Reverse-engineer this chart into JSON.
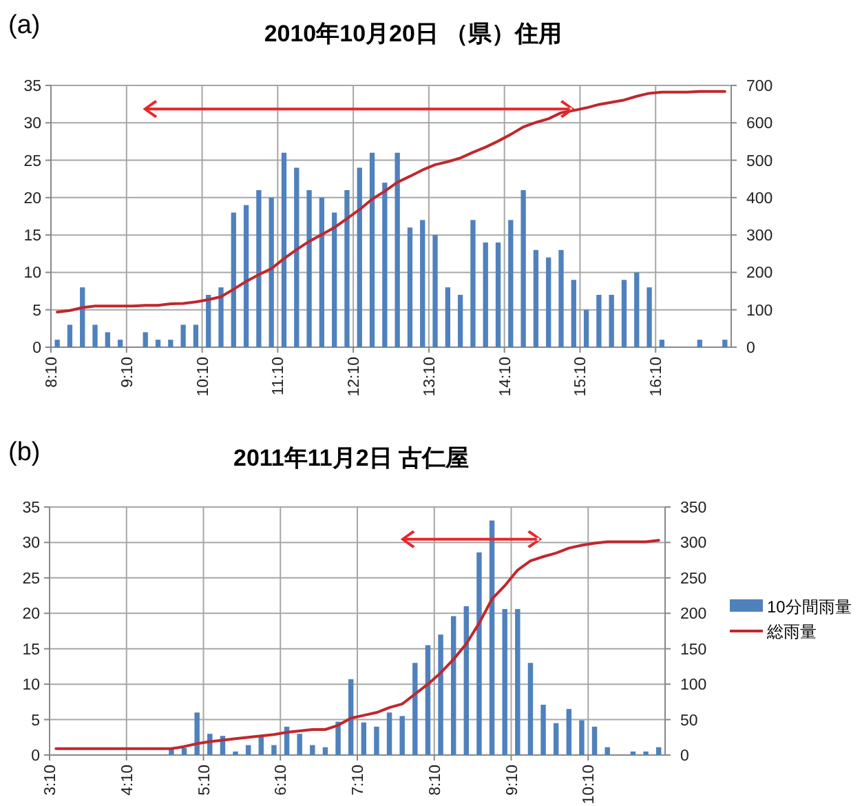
{
  "chart_data": [
    {
      "type": "bar",
      "title": "2010年10月20日 （県）住用",
      "annotations": [
        "(a)"
      ],
      "xlim": [
        8.1667,
        17.1667
      ],
      "xticks": [
        {
          "value": 8.1667,
          "label": "8:10"
        },
        {
          "value": 9.1667,
          "label": "9:10"
        },
        {
          "value": 10.1667,
          "label": "10:10"
        },
        {
          "value": 11.1667,
          "label": "11:10"
        },
        {
          "value": 12.1667,
          "label": "12:10"
        },
        {
          "value": 13.1667,
          "label": "13:10"
        },
        {
          "value": 14.1667,
          "label": "14:10"
        },
        {
          "value": 15.1667,
          "label": "15:10"
        },
        {
          "value": 16.1667,
          "label": "16:10"
        }
      ],
      "ylim": [
        0,
        35
      ],
      "yticks": [
        0,
        5,
        10,
        15,
        20,
        25,
        30,
        35
      ],
      "y2lim": [
        0,
        700
      ],
      "y2ticks": [
        0,
        100,
        200,
        300,
        400,
        500,
        600,
        700
      ],
      "grid": true,
      "x": [
        8.25,
        8.4167,
        8.5833,
        8.75,
        8.9167,
        9.0833,
        9.25,
        9.4167,
        9.5833,
        9.75,
        9.9167,
        10.0833,
        10.25,
        10.4167,
        10.5833,
        10.75,
        10.9167,
        11.0833,
        11.25,
        11.4167,
        11.5833,
        11.75,
        11.9167,
        12.0833,
        12.25,
        12.4167,
        12.5833,
        12.75,
        12.9167,
        13.0833,
        13.25,
        13.4167,
        13.5833,
        13.75,
        13.9167,
        14.0833,
        14.25,
        14.4167,
        14.5833,
        14.75,
        14.9167,
        15.0833,
        15.25,
        15.4167,
        15.5833,
        15.75,
        15.9167,
        16.0833,
        16.25,
        16.4167,
        16.5833,
        16.75,
        16.9167,
        17.0833
      ],
      "series": [
        {
          "color": "#4f81bd",
          "values": [
            1,
            3,
            8,
            3,
            2,
            1,
            0,
            2,
            1,
            1,
            3,
            3,
            7,
            8,
            18,
            19,
            21,
            20,
            26,
            24,
            21,
            20,
            18,
            21,
            24,
            26,
            22,
            26,
            16,
            17,
            15,
            8,
            7,
            17,
            14,
            14,
            17,
            21,
            13,
            12,
            13,
            9,
            5,
            7,
            7,
            9,
            10,
            8,
            1,
            0,
            0,
            1,
            0,
            1
          ]
        },
        {
          "type": "line",
          "axis": "y2",
          "color": "#c0272d",
          "values": [
            94,
            98,
            106,
            110,
            110,
            110,
            110,
            112,
            112,
            116,
            117,
            121,
            127,
            135,
            155,
            176,
            194,
            210,
            237,
            261,
            283,
            301,
            320,
            344,
            368,
            396,
            417,
            441,
            457,
            474,
            488,
            496,
            506,
            521,
            535,
            551,
            569,
            589,
            601,
            611,
            627,
            633,
            640,
            649,
            655,
            661,
            671,
            679,
            682,
            682,
            682,
            684,
            684,
            684
          ]
        }
      ]
    },
    {
      "type": "bar",
      "title": "2011年11月2日  古仁屋",
      "annotations": [
        "(b)"
      ],
      "xlim": [
        3.1667,
        11.1667
      ],
      "xticks": [
        {
          "value": 3.1667,
          "label": "3:10"
        },
        {
          "value": 4.1667,
          "label": "4:10"
        },
        {
          "value": 5.1667,
          "label": "5:10"
        },
        {
          "value": 6.1667,
          "label": "6:10"
        },
        {
          "value": 7.1667,
          "label": "7:10"
        },
        {
          "value": 8.1667,
          "label": "8:10"
        },
        {
          "value": 9.1667,
          "label": "9:10"
        },
        {
          "value": 10.1667,
          "label": "10:10"
        }
      ],
      "ylim": [
        0,
        35
      ],
      "yticks": [
        0,
        5,
        10,
        15,
        20,
        25,
        30,
        35
      ],
      "y2lim": [
        0,
        350
      ],
      "y2ticks": [
        0,
        50,
        100,
        150,
        200,
        250,
        300,
        350
      ],
      "grid": true,
      "legend": "right",
      "x": [
        3.25,
        3.4167,
        3.5833,
        3.75,
        3.9167,
        4.0833,
        4.25,
        4.4167,
        4.5833,
        4.75,
        4.9167,
        5.0833,
        5.25,
        5.4167,
        5.5833,
        5.75,
        5.9167,
        6.0833,
        6.25,
        6.4167,
        6.5833,
        6.75,
        6.9167,
        7.0833,
        7.25,
        7.4167,
        7.5833,
        7.75,
        7.9167,
        8.0833,
        8.25,
        8.4167,
        8.5833,
        8.75,
        8.9167,
        9.0833,
        9.25,
        9.4167,
        9.5833,
        9.75,
        9.9167,
        10.0833,
        10.25,
        10.4167,
        10.5833,
        10.75,
        10.9167,
        11.0833
      ],
      "series": [
        {
          "name": "10分間雨量",
          "color": "#4f81bd",
          "values": [
            0,
            0,
            0,
            0,
            0,
            0,
            0,
            0,
            0,
            1,
            1,
            6,
            3,
            2.7,
            0.5,
            1.4,
            2.7,
            1.4,
            4,
            3,
            1.4,
            1.1,
            4.7,
            10.7,
            4.6,
            4,
            6,
            5.5,
            13,
            15.5,
            17,
            19.6,
            21,
            28.6,
            33.1,
            20.6,
            20.6,
            13,
            7.1,
            4.5,
            6.5,
            4.9,
            4,
            1.1,
            0,
            0.5,
            0.5,
            1.1
          ]
        },
        {
          "type": "line",
          "name": "総雨量",
          "axis": "y2",
          "color": "#c0272d",
          "values": [
            9,
            9,
            9,
            9,
            9,
            9,
            9,
            9,
            9,
            9,
            12,
            16,
            19,
            21,
            23,
            25,
            27,
            29,
            32,
            34,
            36,
            36,
            42,
            52,
            56,
            60,
            67,
            72,
            86,
            100,
            116,
            135,
            157,
            186,
            220,
            239,
            261,
            274,
            280,
            285,
            292,
            296,
            299,
            301,
            301,
            301,
            301,
            303
          ]
        }
      ]
    }
  ]
}
